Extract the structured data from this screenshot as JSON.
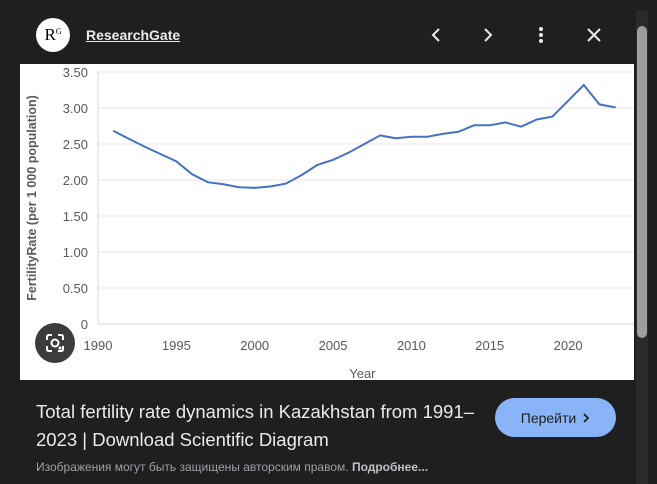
{
  "header": {
    "logo_text": "R",
    "logo_sup": "G",
    "site": "ResearchGate"
  },
  "result": {
    "title": "Total fertility rate dynamics in Kazakhstan from 1991–2023 | Download Scientific Diagram",
    "go_label": "Перейти",
    "note": "Изображения могут быть защищены авторским правом.",
    "note_more": "Подробнее..."
  },
  "colors": {
    "line": "#4472c4",
    "accent": "#8ab4f8"
  },
  "chart_data": {
    "type": "line",
    "title": "",
    "xlabel": "Year",
    "ylabel": "FertilityRate (per 1 000 population)",
    "xlim": [
      1990,
      2024
    ],
    "ylim": [
      0,
      3.5
    ],
    "xticks": [
      "1990",
      "1995",
      "2000",
      "2005",
      "2010",
      "2015",
      "2020"
    ],
    "yticks": [
      "0",
      "0.50",
      "1.00",
      "1.50",
      "2.00",
      "2.50",
      "3.00",
      "3.50"
    ],
    "grid": true,
    "x": [
      1991,
      1992,
      1993,
      1994,
      1995,
      1996,
      1997,
      1998,
      1999,
      2000,
      2001,
      2002,
      2003,
      2004,
      2005,
      2006,
      2007,
      2008,
      2009,
      2010,
      2011,
      2012,
      2013,
      2014,
      2015,
      2016,
      2017,
      2018,
      2019,
      2020,
      2021,
      2022,
      2023
    ],
    "series": [
      {
        "name": "Fertility rate",
        "values": [
          2.68,
          2.57,
          2.46,
          2.36,
          2.26,
          2.08,
          1.97,
          1.94,
          1.9,
          1.89,
          1.91,
          1.95,
          2.07,
          2.21,
          2.28,
          2.38,
          2.5,
          2.62,
          2.58,
          2.6,
          2.6,
          2.64,
          2.67,
          2.76,
          2.76,
          2.8,
          2.74,
          2.84,
          2.88,
          3.1,
          3.32,
          3.05,
          3.01
        ]
      }
    ]
  }
}
